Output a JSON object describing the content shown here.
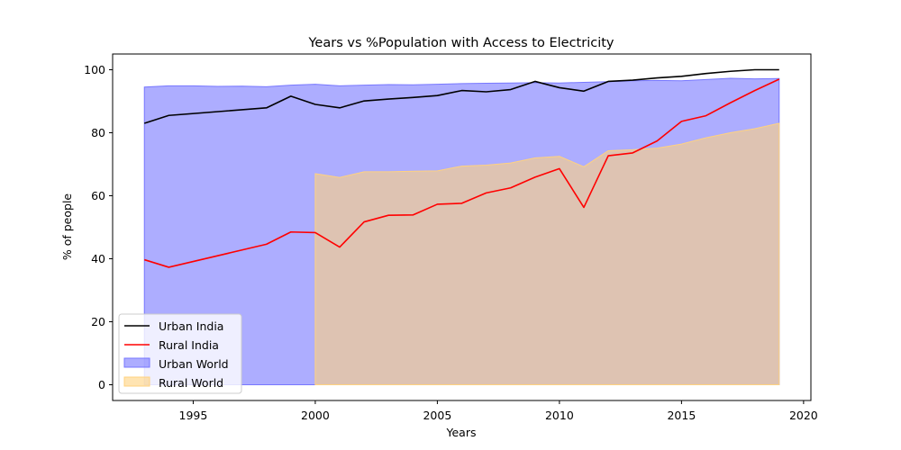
{
  "chart_data": {
    "type": "line",
    "title": "Years vs %Population with Access to Electricity",
    "xlabel": "Years",
    "ylabel": "% of people",
    "xlim": [
      1991.7,
      2020.3
    ],
    "ylim": [
      -5,
      105
    ],
    "xticks": [
      "1995",
      "2000",
      "2005",
      "2010",
      "2015",
      "2020"
    ],
    "yticks": [
      "0",
      "20",
      "40",
      "60",
      "80",
      "100"
    ],
    "legend_position": "lower-left",
    "series": [
      {
        "name": "Urban India",
        "kind": "line",
        "color": "#000000",
        "x": [
          1993,
          1994,
          1998,
          1999,
          2000,
          2001,
          2002,
          2003,
          2004,
          2005,
          2006,
          2007,
          2008,
          2009,
          2010,
          2011,
          2012,
          2013,
          2014,
          2015,
          2016,
          2017,
          2018,
          2019
        ],
        "y": [
          83.0,
          85.5,
          87.9,
          91.6,
          89.0,
          87.9,
          90.1,
          90.7,
          91.2,
          91.8,
          93.4,
          93.0,
          93.7,
          96.3,
          94.3,
          93.2,
          96.3,
          96.7,
          97.4,
          97.9,
          98.8,
          99.5,
          100.0,
          100.0
        ]
      },
      {
        "name": "Rural India",
        "kind": "line",
        "color": "#ff0000",
        "x": [
          1993,
          1994,
          1998,
          1999,
          2000,
          2001,
          2002,
          2003,
          2004,
          2005,
          2006,
          2007,
          2008,
          2009,
          2010,
          2011,
          2012,
          2013,
          2014,
          2015,
          2016,
          2017,
          2018,
          2019
        ],
        "y": [
          39.7,
          37.3,
          44.6,
          48.5,
          48.3,
          43.7,
          51.7,
          53.8,
          53.9,
          57.3,
          57.6,
          60.9,
          62.5,
          65.9,
          68.6,
          56.3,
          72.7,
          73.6,
          77.4,
          83.6,
          85.4,
          89.5,
          93.4,
          97.0
        ]
      },
      {
        "name": "Urban World",
        "kind": "area",
        "color": "#7777ff",
        "x": [
          1993,
          1994,
          1995,
          1996,
          1997,
          1998,
          1999,
          2000,
          2001,
          2002,
          2003,
          2004,
          2005,
          2006,
          2007,
          2008,
          2009,
          2010,
          2011,
          2012,
          2013,
          2014,
          2015,
          2016,
          2017,
          2018,
          2019
        ],
        "y": [
          94.5,
          94.9,
          94.9,
          94.7,
          94.8,
          94.6,
          95.1,
          95.4,
          94.9,
          95.1,
          95.3,
          95.2,
          95.4,
          95.6,
          95.7,
          95.8,
          95.9,
          95.8,
          96.0,
          96.2,
          96.5,
          96.6,
          96.5,
          96.9,
          97.3,
          97.1,
          97.2
        ]
      },
      {
        "name": "Rural World",
        "kind": "area",
        "color": "#ffd27f",
        "x": [
          2000,
          2001,
          2002,
          2003,
          2004,
          2005,
          2006,
          2007,
          2008,
          2009,
          2010,
          2011,
          2012,
          2013,
          2014,
          2015,
          2016,
          2017,
          2018,
          2019
        ],
        "y": [
          67.0,
          65.8,
          67.6,
          67.6,
          67.8,
          67.9,
          69.4,
          69.7,
          70.4,
          72.0,
          72.5,
          69.2,
          74.3,
          74.6,
          75.1,
          76.4,
          78.4,
          80.0,
          81.3,
          83.0
        ]
      }
    ]
  }
}
